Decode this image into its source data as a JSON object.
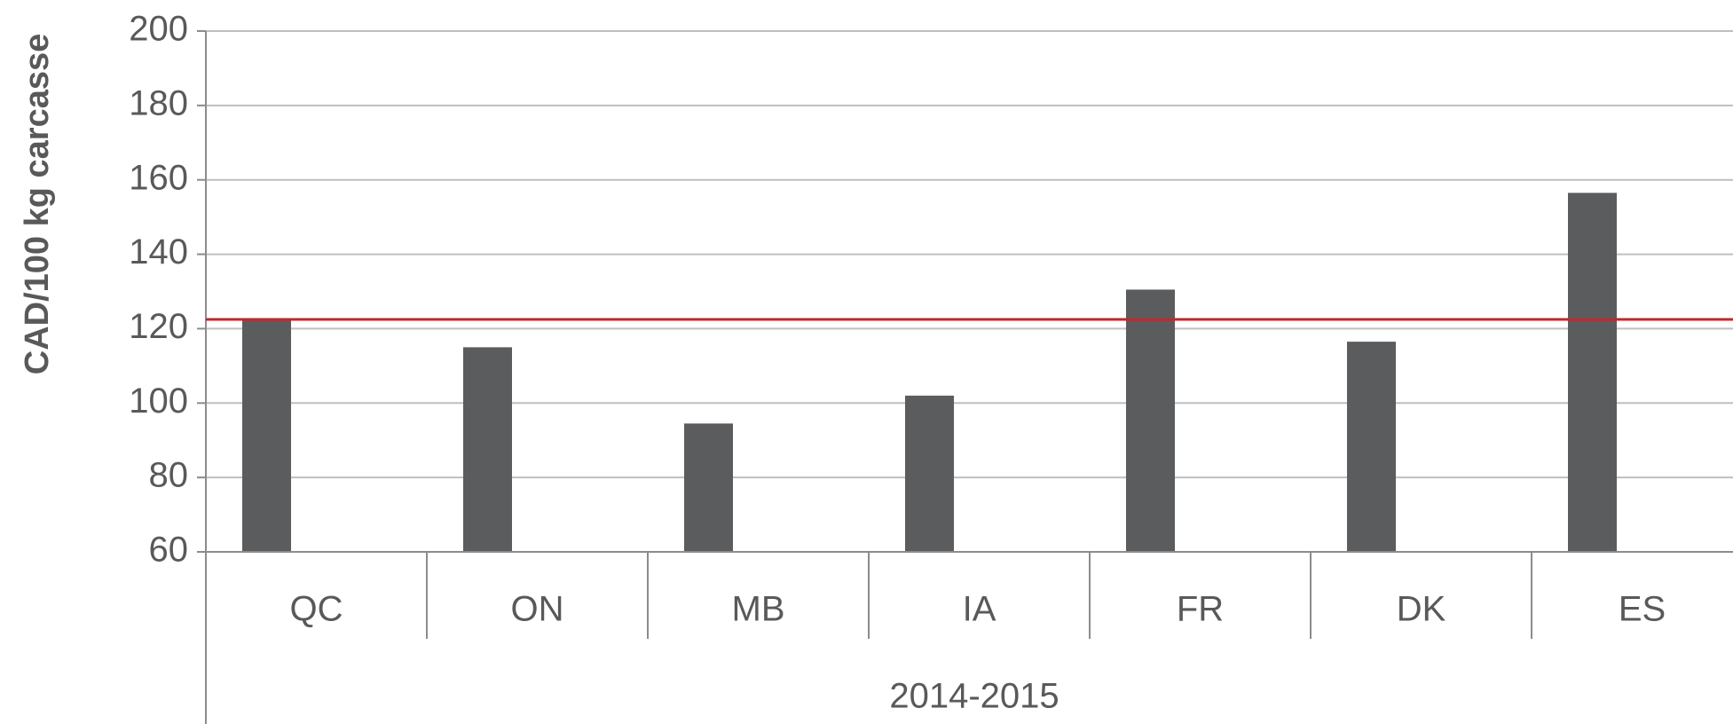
{
  "chart_data": {
    "type": "bar",
    "y_label": "CAD/100 kg carcasse",
    "x_group_label": "2014-2015",
    "categories": [
      "QC",
      "ON",
      "MB",
      "IA",
      "FR",
      "DK",
      "ES"
    ],
    "values": [
      122.5,
      115,
      94.5,
      102,
      130.5,
      116.5,
      156.5
    ],
    "color": "#5b5c5e",
    "reference_value": 122.5,
    "reference_color": "#c0282d",
    "ylim": [
      60,
      200
    ],
    "yticks": [
      60,
      80,
      100,
      120,
      140,
      160,
      180,
      200
    ],
    "grid": true
  }
}
